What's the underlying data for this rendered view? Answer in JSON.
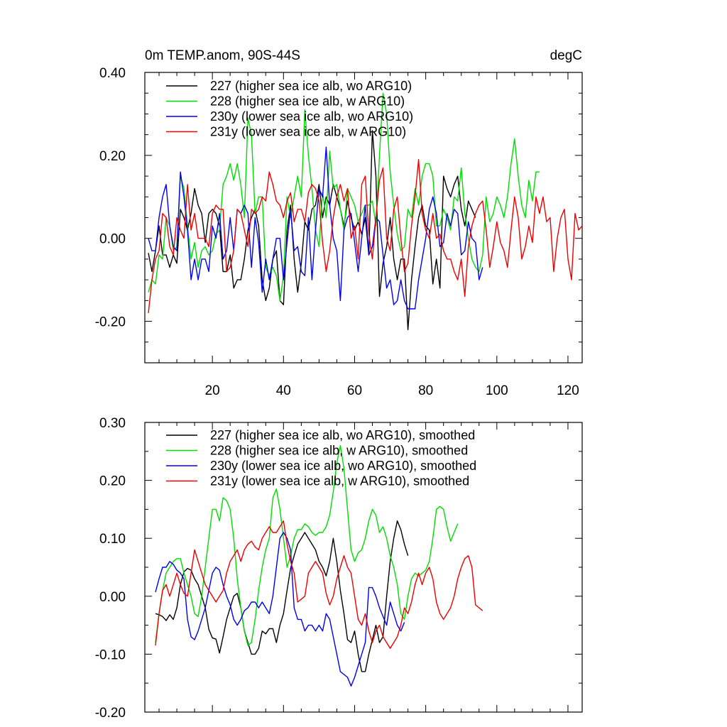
{
  "chart_data": [
    {
      "type": "line",
      "title": "0m TEMP.anom, 90S-44S",
      "units": "degC",
      "xlim": [
        1,
        124
      ],
      "ylim": [
        -0.3,
        0.4
      ],
      "x_ticks": [
        20,
        40,
        60,
        80,
        100,
        120
      ],
      "y_ticks": [
        -0.2,
        0.0,
        0.2,
        0.4
      ],
      "x_tick_labels": [
        "20",
        "40",
        "60",
        "80",
        "100",
        "120"
      ],
      "y_tick_labels": [
        "-0.20",
        "0.00",
        "0.20",
        "0.40"
      ],
      "legend_position": "top-left",
      "series": [
        {
          "name": "227 (higher sea ice alb, wo ARG10)",
          "color": "#000000",
          "x_start": 2,
          "values": [
            -0.035,
            -0.08,
            -0.03,
            0.03,
            -0.04,
            -0.04,
            -0.07,
            -0.04,
            -0.06,
            0.07,
            0.05,
            0.02,
            0.06,
            0.12,
            0.08,
            0.06,
            -0.01,
            0.06,
            0.07,
            0.06,
            0.03,
            -0.08,
            -0.08,
            -0.04,
            -0.12,
            -0.1,
            -0.1,
            -0.05,
            0.02,
            0.05,
            0.07,
            0.03,
            -0.1,
            -0.15,
            -0.12,
            -0.05,
            -0.03,
            -0.15,
            -0.16,
            0.02,
            0.08,
            -0.05,
            -0.13,
            -0.06,
            0.04,
            0.02,
            0.07,
            0.08,
            0.13,
            0.05,
            0.1,
            0.08,
            0.13,
            0.1,
            0.07,
            0.03,
            0.09,
            0.05,
            0.02,
            0.04,
            0.01,
            0.05,
            -0.04,
            0.26,
            0.15,
            -0.14,
            -0.06,
            -0.02,
            0.05,
            -0.05,
            -0.1,
            -0.05,
            -0.05,
            -0.22,
            -0.1,
            -0.02,
            0.05,
            0.08,
            0.03,
            0.02,
            -0.11,
            -0.05,
            -0.12,
            0.15,
            0.12,
            0.1,
            0.13,
            0.15,
            0.07,
            0.03,
            0.09,
            0.07,
            0.05
          ]
        },
        {
          "name": "228 (higher sea ice alb, w ARG10)",
          "color": "#00dd00",
          "x_start": 2,
          "values": [
            -0.13,
            -0.1,
            -0.11,
            -0.04,
            -0.05,
            0.05,
            0.03,
            -0.03,
            -0.02,
            0.15,
            0.12,
            0.03,
            -0.05,
            -0.01,
            -0.07,
            -0.03,
            -0.02,
            -0.04,
            -0.03,
            0.01,
            0.02,
            0.13,
            0.15,
            0.18,
            0.14,
            0.18,
            0.13,
            0.05,
            0.29,
            0.25,
            0.06,
            0.1,
            0.1,
            -0.07,
            -0.09,
            -0.07,
            -0.09,
            -0.15,
            -0.09,
            0.1,
            0.05,
            0.1,
            0.15,
            0.1,
            0.31,
            0.2,
            0.12,
            0.02,
            -0.02,
            0.11,
            0.05,
            0.21,
            0.12,
            0.13,
            0.07,
            0.02,
            0.12,
            0.1,
            0.08,
            0.04,
            0.06,
            0.08,
            0.08,
            0.09,
            0.03,
            0.2,
            0.35,
            0.3,
            0.16,
            0.08,
            0.01,
            -0.03,
            -0.02,
            0.07,
            0.05,
            0.12,
            0.08,
            0.15,
            0.18,
            0.18,
            0.15,
            0.03,
            0.03,
            0.07,
            0.05,
            0.02,
            0.1,
            0.09,
            0.17,
            0.06,
            0.0,
            -0.05,
            -0.07,
            -0.08,
            -0.04,
            0.1,
            0.04,
            0.06,
            0.1,
            0.08,
            0.05,
            0.1,
            0.18,
            0.24,
            0.15,
            0.08,
            0.05,
            0.14,
            0.09,
            0.16,
            0.16
          ]
        },
        {
          "name": "230y (lower sea ice alb, wo ARG10)",
          "color": "#0000ee",
          "x_start": 2,
          "values": [
            0.0,
            -0.03,
            -0.03,
            0.05,
            0.1,
            0.13,
            0.03,
            -0.02,
            -0.03,
            0.16,
            0.1,
            0.02,
            -0.1,
            -0.05,
            -0.1,
            -0.05,
            -0.05,
            -0.08,
            0.03,
            0.0,
            0.06,
            -0.05,
            -0.03,
            0.05,
            -0.03,
            0.07,
            0.06,
            0.08,
            0.06,
            -0.07,
            0.05,
            -0.01,
            -0.13,
            -0.05,
            -0.1,
            -0.05,
            0.0,
            0.0,
            -0.1,
            -0.01,
            0.07,
            -0.03,
            -0.02,
            -0.08,
            -0.09,
            0.05,
            -0.1,
            0.02,
            0.12,
            0.1,
            0.22,
            0.08,
            0.0,
            -0.03,
            -0.15,
            0.02,
            0.05,
            0.06,
            -0.01,
            -0.08,
            0.0,
            0.08,
            -0.04,
            -0.02,
            0.05,
            0.04,
            -0.04,
            -0.12,
            -0.1,
            -0.16,
            -0.15,
            -0.1,
            -0.15,
            -0.17,
            -0.17,
            -0.17,
            -0.1,
            -0.05,
            0.0,
            0.07,
            0.1,
            0.06,
            -0.02,
            -0.01,
            0.06,
            0.03,
            0.07,
            0.06,
            -0.04,
            -0.03,
            0.04,
            0.0,
            -0.01,
            -0.1,
            -0.07
          ]
        },
        {
          "name": "231y (lower sea ice alb, w ARG10)",
          "color": "#ee0000",
          "x_start": 2,
          "values": [
            -0.18,
            -0.1,
            -0.05,
            -0.03,
            0.06,
            0.05,
            -0.02,
            -0.04,
            0.05,
            0.02,
            0.0,
            0.13,
            0.02,
            0.06,
            0.0,
            0.0,
            0.0,
            -0.02,
            0.06,
            0.08,
            0.07,
            0.07,
            -0.08,
            -0.07,
            -0.03,
            0.07,
            0.06,
            0.02,
            -0.02,
            0.07,
            0.06,
            0.07,
            0.1,
            0.09,
            0.16,
            0.13,
            0.09,
            0.08,
            0.05,
            0.09,
            0.11,
            0.04,
            0.07,
            0.07,
            0.04,
            0.11,
            0.13,
            0.12,
            0.09,
            -0.01,
            -0.08,
            -0.03,
            0.05,
            0.1,
            0.13,
            0.09,
            0.12,
            0.0,
            0.03,
            -0.05,
            0.13,
            0.15,
            0.01,
            -0.05,
            0.05,
            0.14,
            0.17,
            0.0,
            -0.03,
            0.07,
            0.1,
            0.0,
            -0.08,
            -0.06,
            0.03,
            0.1,
            0.19,
            0.06,
            0.02,
            0.0,
            0.06,
            0.0,
            0.01,
            -0.03,
            -0.05,
            -0.05,
            -0.08,
            -0.1,
            -0.05,
            -0.14,
            -0.02,
            0.03,
            0.06,
            0.08,
            0.09,
            0.02,
            -0.07,
            -0.02,
            0.04,
            -0.01,
            -0.03,
            -0.07,
            0.02,
            0.1,
            0.05,
            -0.05,
            -0.02,
            0.03,
            -0.01,
            0.1,
            0.06,
            0.1,
            0.04,
            0.05,
            -0.08,
            0.0,
            0.05,
            0.07,
            -0.05,
            -0.1,
            0.06,
            0.02,
            0.03
          ]
        }
      ]
    },
    {
      "type": "line",
      "xlim": [
        1,
        124
      ],
      "ylim": [
        -0.2,
        0.3
      ],
      "y_ticks": [
        -0.2,
        -0.1,
        0.0,
        0.1,
        0.2,
        0.3
      ],
      "y_tick_labels": [
        "-0.20",
        "-0.10",
        "0.00",
        "0.10",
        "0.20",
        "0.30"
      ],
      "x_tick_labels_shown": false,
      "legend_position": "top-left",
      "series": [
        {
          "name": "227 (higher sea ice alb, wo ARG10), smoothed",
          "color": "#000000",
          "x_start": 4,
          "values": [
            -0.03,
            -0.032,
            -0.035,
            -0.042,
            -0.032,
            -0.04,
            -0.02,
            0.02,
            0.042,
            0.048,
            0.045,
            0.03,
            0.02,
            0.0,
            -0.02,
            -0.057,
            -0.072,
            -0.074,
            -0.098,
            -0.07,
            -0.04,
            -0.02,
            0.0,
            0.005,
            -0.02,
            -0.06,
            -0.08,
            -0.1,
            -0.1,
            -0.09,
            -0.06,
            -0.065,
            -0.056,
            -0.056,
            -0.08,
            -0.05,
            -0.03,
            0.01,
            0.048,
            0.07,
            0.09,
            0.1,
            0.11,
            0.1,
            0.09,
            0.08,
            0.06,
            0.05,
            0.035,
            0.06,
            0.1,
            0.06,
            0.01,
            -0.03,
            -0.075,
            -0.08,
            -0.06,
            -0.1,
            -0.13,
            -0.13,
            -0.1,
            -0.075,
            -0.05,
            -0.08,
            -0.07,
            0.0,
            0.06,
            0.1,
            0.13,
            0.115,
            0.09,
            0.07
          ]
        },
        {
          "name": "228 (higher sea ice alb, w ARG10), smoothed",
          "color": "#00dd00",
          "x_start": 4,
          "values": [
            -0.08,
            -0.03,
            0.01,
            0.04,
            0.05,
            0.06,
            0.065,
            0.065,
            0.04,
            0.02,
            0.0,
            -0.03,
            -0.035,
            0.0,
            0.05,
            0.1,
            0.15,
            0.15,
            0.13,
            0.17,
            0.165,
            0.15,
            0.1,
            0.03,
            -0.02,
            -0.06,
            -0.085,
            -0.08,
            -0.04,
            0.01,
            0.05,
            0.08,
            0.1,
            0.17,
            0.185,
            0.15,
            0.1,
            0.05,
            0.07,
            0.1,
            0.115,
            0.115,
            0.125,
            0.12,
            0.11,
            0.105,
            0.11,
            0.11,
            0.12,
            0.14,
            0.18,
            0.23,
            0.26,
            0.22,
            0.15,
            0.08,
            0.06,
            0.075,
            0.08,
            0.1,
            0.13,
            0.15,
            0.14,
            0.11,
            0.12,
            0.1,
            0.07,
            0.05,
            0.02,
            -0.03,
            -0.04,
            0.0,
            0.03,
            0.04,
            0.035,
            0.04,
            0.045,
            0.06,
            0.1,
            0.15,
            0.155,
            0.15,
            0.12,
            0.095,
            0.11,
            0.125
          ]
        },
        {
          "name": "230y (lower sea ice alb, wo ARG10), smoothed",
          "color": "#0000ee",
          "x_start": 4,
          "values": [
            0.007,
            0.03,
            0.05,
            0.05,
            0.06,
            0.055,
            0.045,
            0.04,
            0.03,
            -0.04,
            -0.07,
            -0.075,
            -0.06,
            -0.04,
            -0.02,
            0.01,
            0.04,
            0.05,
            0.045,
            0.02,
            0.0,
            -0.015,
            -0.04,
            -0.05,
            -0.04,
            -0.025,
            -0.02,
            -0.01,
            -0.01,
            -0.02,
            -0.01,
            -0.02,
            -0.03,
            0.0,
            0.05,
            0.1,
            0.11,
            0.1,
            0.08,
            -0.02,
            -0.04,
            -0.04,
            -0.06,
            -0.05,
            -0.05,
            -0.06,
            -0.05,
            -0.06,
            -0.03,
            -0.04,
            -0.07,
            -0.1,
            -0.13,
            -0.135,
            -0.14,
            -0.155,
            -0.14,
            -0.12,
            -0.1,
            -0.08,
            0.015,
            0.015,
            0.0,
            -0.02,
            -0.035,
            -0.05,
            -0.01,
            -0.03,
            -0.05,
            -0.06,
            -0.045
          ]
        },
        {
          "name": "231y (lower sea ice alb, w ARG10), smoothed",
          "color": "#ee0000",
          "x_start": 4,
          "values": [
            -0.085,
            -0.03,
            0.01,
            0.02,
            0.0,
            0.02,
            0.04,
            0.02,
            0.005,
            0.0,
            0.04,
            0.08,
            0.06,
            0.04,
            0.02,
            0.01,
            0.0,
            -0.01,
            0.0,
            0.01,
            0.04,
            0.06,
            0.07,
            0.08,
            0.06,
            0.08,
            0.09,
            0.095,
            0.085,
            0.08,
            0.1,
            0.11,
            0.12,
            0.11,
            0.11,
            0.12,
            0.13,
            0.09,
            0.06,
            0.04,
            -0.01,
            -0.005,
            0.0,
            0.04,
            0.05,
            0.06,
            0.05,
            0.04,
            0.005,
            -0.015,
            0.0,
            0.03,
            0.05,
            0.07,
            0.05,
            0.04,
            0.0,
            -0.04,
            -0.05,
            -0.03,
            -0.06,
            -0.08,
            -0.06,
            -0.05,
            -0.07,
            -0.08,
            -0.09,
            -0.08,
            -0.07,
            -0.05,
            -0.02,
            -0.03,
            -0.01,
            0.02,
            0.04,
            0.02,
            0.04,
            0.05,
            0.03,
            -0.01,
            -0.03,
            -0.04,
            -0.03,
            -0.02,
            0.0,
            0.03,
            0.05,
            0.065,
            0.07,
            0.05,
            -0.015,
            -0.02,
            -0.025
          ]
        }
      ]
    }
  ]
}
